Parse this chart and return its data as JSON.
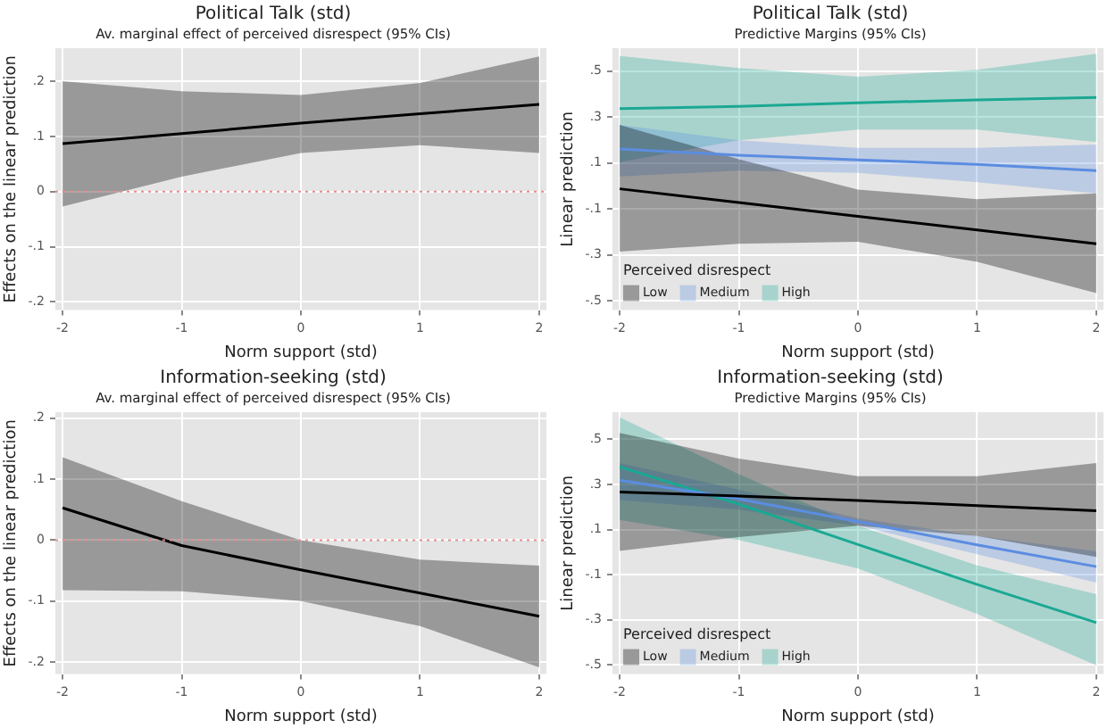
{
  "chart_data": [
    {
      "type": "line",
      "title": "Political Talk (std)",
      "subtitle": "Av. marginal effect of perceived disrespect (95% CIs)",
      "xlabel": "Norm support (std)",
      "ylabel": "Effects on the linear prediction",
      "x": [
        -2,
        -1,
        0,
        1,
        2
      ],
      "xlim": [
        -2.06,
        2.06
      ],
      "xticks": [
        -2,
        -1,
        0,
        1,
        2
      ],
      "ylim": [
        -0.215,
        0.26
      ],
      "yticks": [
        {
          "value": -0.2,
          "label": "-.2"
        },
        {
          "value": -0.1,
          "label": "-.1"
        },
        0,
        {
          "value": 0.1,
          "label": ".1"
        },
        {
          "value": 0.2,
          "label": ".2"
        }
      ],
      "grid": true,
      "series": [
        {
          "color": "#000000",
          "values": [
            0.087,
            0.105,
            0.124,
            0.141,
            0.158
          ],
          "lower": [
            -0.027,
            0.027,
            0.07,
            0.084,
            0.07
          ],
          "upper": [
            0.2,
            0.182,
            0.175,
            0.197,
            0.245
          ]
        }
      ],
      "ref_lines": [
        {
          "axis": "y",
          "value": 0,
          "color": "#e88a8a",
          "line_style": "dotted"
        }
      ]
    },
    {
      "type": "line",
      "title": "Political Talk (std)",
      "subtitle": "Predictive Margins (95% CIs)",
      "xlabel": "Norm support (std)",
      "ylabel": "Linear prediction",
      "legend_title": "Perceived disrespect",
      "legend": "bottom left",
      "x": [
        -2,
        -1,
        0,
        1,
        2
      ],
      "xlim": [
        -2.06,
        2.06
      ],
      "xticks": [
        -2,
        -1,
        0,
        1,
        2
      ],
      "ylim": [
        -0.54,
        0.6
      ],
      "yticks": [
        {
          "value": -0.5,
          "label": "-.5"
        },
        {
          "value": -0.3,
          "label": "-.3"
        },
        {
          "value": -0.1,
          "label": "-.1"
        },
        {
          "value": 0.1,
          "label": ".1"
        },
        {
          "value": 0.3,
          "label": ".3"
        },
        {
          "value": 0.5,
          "label": ".5"
        }
      ],
      "grid": true,
      "series": [
        {
          "name": "Low",
          "color": "#000000",
          "values": [
            -0.012,
            -0.072,
            -0.132,
            -0.191,
            -0.251
          ],
          "lower": [
            -0.285,
            -0.251,
            -0.243,
            -0.33,
            -0.466
          ],
          "upper": [
            0.266,
            0.117,
            -0.015,
            -0.057,
            -0.032
          ]
        },
        {
          "name": "Medium",
          "color": "#5b8de0",
          "values": [
            0.161,
            0.134,
            0.114,
            0.094,
            0.067
          ],
          "lower": [
            0.042,
            0.067,
            0.057,
            0.017,
            -0.032
          ],
          "upper": [
            0.266,
            0.199,
            0.166,
            0.166,
            0.181
          ]
        },
        {
          "name": "High",
          "color": "#1aa893",
          "values": [
            0.337,
            0.347,
            0.362,
            0.375,
            0.385
          ],
          "lower": [
            0.104,
            0.199,
            0.246,
            0.246,
            0.191
          ],
          "upper": [
            0.566,
            0.514,
            0.476,
            0.506,
            0.576
          ]
        }
      ]
    },
    {
      "type": "line",
      "title": "Information-seeking (std)",
      "subtitle": "Av. marginal effect of perceived disrespect (95% CIs)",
      "xlabel": "Norm support (std)",
      "ylabel": "Effects on the linear prediction",
      "x": [
        -2,
        -1,
        0,
        1,
        2
      ],
      "xlim": [
        -2.06,
        2.06
      ],
      "xticks": [
        -2,
        -1,
        0,
        1,
        2
      ],
      "ylim": [
        -0.22,
        0.21
      ],
      "yticks": [
        {
          "value": -0.2,
          "label": "-.2"
        },
        {
          "value": -0.1,
          "label": "-.1"
        },
        0,
        {
          "value": 0.1,
          "label": ".1"
        },
        {
          "value": 0.2,
          "label": ".2"
        }
      ],
      "grid": true,
      "series": [
        {
          "color": "#000000",
          "values": [
            0.053,
            -0.009,
            -0.049,
            -0.087,
            -0.125
          ],
          "lower": [
            -0.082,
            -0.084,
            -0.1,
            -0.141,
            -0.209
          ],
          "upper": [
            0.136,
            0.064,
            0,
            -0.032,
            -0.042
          ]
        }
      ],
      "ref_lines": [
        {
          "axis": "y",
          "value": 0,
          "color": "#e88a8a",
          "line_style": "dotted"
        }
      ]
    },
    {
      "type": "line",
      "title": "Information-seeking (std)",
      "subtitle": "Predictive Margins (95% CIs)",
      "xlabel": "Norm support (std)",
      "ylabel": "Linear prediction",
      "legend_title": "Perceived disrespect",
      "legend": "bottom left",
      "x": [
        -2,
        -1,
        0,
        1,
        2
      ],
      "xlim": [
        -2.06,
        2.06
      ],
      "xticks": [
        -2,
        -1,
        0,
        1,
        2
      ],
      "ylim": [
        -0.54,
        0.62
      ],
      "yticks": [
        {
          "value": -0.5,
          "label": "-.5"
        },
        {
          "value": -0.3,
          "label": "-.3"
        },
        {
          "value": -0.1,
          "label": "-.1"
        },
        {
          "value": 0.1,
          "label": ".1"
        },
        {
          "value": 0.3,
          "label": ".3"
        },
        {
          "value": 0.5,
          "label": ".5"
        }
      ],
      "grid": true,
      "series": [
        {
          "name": "Low",
          "color": "#000000",
          "values": [
            0.266,
            0.249,
            0.229,
            0.206,
            0.183
          ],
          "lower": [
            0.006,
            0.067,
            0.117,
            0.072,
            -0.021
          ],
          "upper": [
            0.528,
            0.415,
            0.337,
            0.337,
            0.395
          ]
        },
        {
          "name": "Medium",
          "color": "#5b8de0",
          "values": [
            0.319,
            0.236,
            0.135,
            0.032,
            -0.064
          ],
          "lower": [
            0.231,
            0.188,
            0.117,
            -0.009,
            -0.135
          ],
          "upper": [
            0.395,
            0.277,
            0.15,
            0.072,
            0.004
          ]
        },
        {
          "name": "High",
          "color": "#1aa893",
          "values": [
            0.378,
            0.213,
            0.034,
            -0.143,
            -0.312
          ],
          "lower": [
            0.143,
            0.054,
            -0.072,
            -0.274,
            -0.501
          ],
          "upper": [
            0.597,
            0.345,
            0.117,
            -0.059,
            -0.186
          ]
        }
      ]
    }
  ]
}
